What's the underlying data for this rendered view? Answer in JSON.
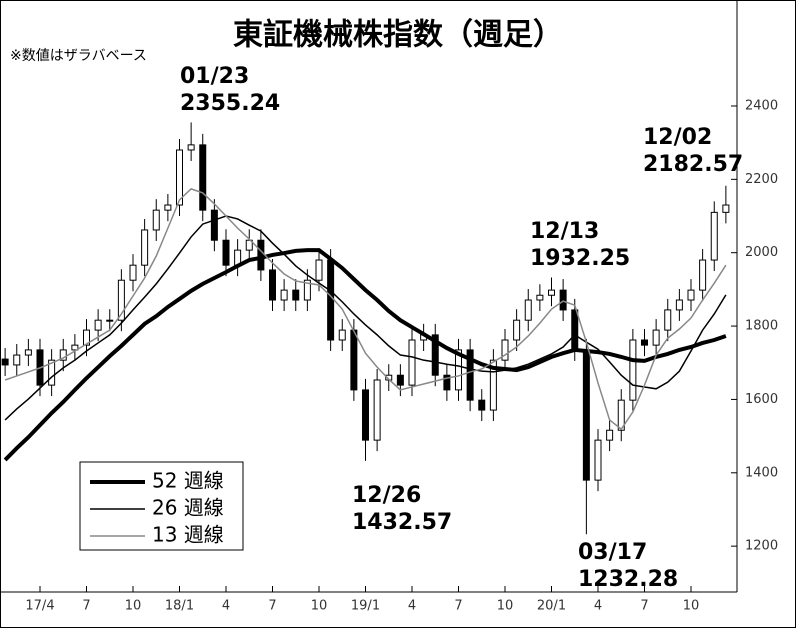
{
  "chart_data": {
    "type": "candlestick",
    "title": "東証機械株指数（週足）",
    "subtitle": "※数値はザラバベース",
    "categories": [
      null,
      null,
      null,
      "17/4",
      null,
      null,
      null,
      "7",
      null,
      null,
      null,
      "10",
      null,
      null,
      null,
      "18/1",
      null,
      null,
      null,
      "4",
      null,
      null,
      null,
      "7",
      null,
      null,
      null,
      "10",
      null,
      null,
      null,
      "19/1",
      null,
      null,
      null,
      "4",
      null,
      null,
      null,
      "7",
      null,
      null,
      null,
      "10",
      null,
      null,
      null,
      "20/1",
      null,
      null,
      null,
      "4",
      null,
      null,
      null,
      "7",
      null,
      null,
      null,
      "10",
      null,
      null,
      null
    ],
    "open": [
      1710,
      1694,
      1721,
      1735,
      1639,
      1707,
      1735,
      1748,
      1789,
      1816,
      1816,
      1925,
      1966,
      2062,
      2116,
      2130,
      2280,
      2294,
      2116,
      2034,
      1966,
      2007,
      2034,
      1953,
      1871,
      1898,
      1871,
      1925,
      1980,
      1762,
      1789,
      1626,
      1489,
      1653,
      1666,
      1639,
      1762,
      1776,
      1666,
      1626,
      1735,
      1598,
      1571,
      1707,
      1762,
      1816,
      1871,
      1884,
      1898,
      1844,
      1735,
      1380,
      1489,
      1516,
      1598,
      1762,
      1748,
      1789,
      1844,
      1871,
      1898,
      1980,
      2110
    ],
    "high": [
      1740,
      1751,
      1765,
      1765,
      1737,
      1765,
      1778,
      1819,
      1846,
      1846,
      1955,
      1996,
      2092,
      2146,
      2160,
      2310,
      2355.24,
      2324,
      2146,
      2064,
      2037,
      2064,
      2064,
      1983,
      1928,
      1928,
      1955,
      2010,
      2010,
      1819,
      1819,
      1656,
      1683,
      1696,
      1696,
      1792,
      1806,
      1806,
      1696,
      1765,
      1765,
      1628,
      1737,
      1792,
      1846,
      1901,
      1914,
      1932.25,
      1928,
      1874,
      1765,
      1519,
      1546,
      1628,
      1792,
      1792,
      1819,
      1874,
      1901,
      1928,
      2010,
      2140,
      2182.57
    ],
    "low": [
      1664,
      1664,
      1691,
      1609,
      1609,
      1677,
      1705,
      1718,
      1759,
      1786,
      1786,
      1895,
      1936,
      2032,
      2086,
      2100,
      2250,
      2086,
      2004,
      1936,
      1936,
      1977,
      1923,
      1841,
      1841,
      1841,
      1841,
      1895,
      1732,
      1732,
      1596,
      1432.57,
      1459,
      1623,
      1609,
      1609,
      1732,
      1636,
      1596,
      1596,
      1568,
      1541,
      1541,
      1677,
      1732,
      1786,
      1841,
      1854,
      1814,
      1705,
      1232.28,
      1350,
      1459,
      1486,
      1568,
      1718,
      1718,
      1759,
      1814,
      1841,
      1868,
      1950,
      2080
    ],
    "close": [
      1694,
      1721,
      1735,
      1639,
      1707,
      1735,
      1748,
      1789,
      1816,
      1816,
      1925,
      1966,
      2062,
      2116,
      2130,
      2280,
      2294,
      2116,
      2034,
      1966,
      2007,
      2034,
      1953,
      1871,
      1898,
      1871,
      1925,
      1980,
      1762,
      1789,
      1626,
      1489,
      1653,
      1666,
      1639,
      1762,
      1776,
      1666,
      1626,
      1735,
      1598,
      1571,
      1707,
      1762,
      1816,
      1871,
      1884,
      1898,
      1844,
      1735,
      1380,
      1489,
      1516,
      1598,
      1762,
      1748,
      1789,
      1844,
      1871,
      1898,
      1980,
      2110,
      2130
    ],
    "series": [
      {
        "name": "52 週線",
        "color": "#000000",
        "width": 4,
        "values": [
          1435,
          1467,
          1497,
          1530,
          1563,
          1593,
          1626,
          1658,
          1688,
          1718,
          1746,
          1776,
          1806,
          1827,
          1852,
          1874,
          1896,
          1915,
          1931,
          1947,
          1964,
          1980,
          1986,
          1994,
          1999,
          2005,
          2007,
          2007,
          1983,
          1958,
          1928,
          1898,
          1871,
          1841,
          1816,
          1797,
          1778,
          1759,
          1740,
          1724,
          1710,
          1696,
          1686,
          1683,
          1680,
          1688,
          1702,
          1716,
          1726,
          1735,
          1732,
          1729,
          1724,
          1716,
          1707,
          1705,
          1716,
          1724,
          1735,
          1743,
          1754,
          1762,
          1773
        ]
      },
      {
        "name": "26 週線",
        "color": "#000000",
        "width": 1.5,
        "values": [
          1544,
          1574,
          1601,
          1631,
          1661,
          1686,
          1707,
          1732,
          1754,
          1776,
          1808,
          1844,
          1879,
          1915,
          1956,
          1999,
          2043,
          2078,
          2089,
          2100,
          2092,
          2075,
          2059,
          2026,
          1996,
          1964,
          1939,
          1917,
          1896,
          1866,
          1833,
          1803,
          1776,
          1746,
          1721,
          1716,
          1707,
          1702,
          1696,
          1691,
          1683,
          1677,
          1675,
          1680,
          1686,
          1696,
          1710,
          1724,
          1743,
          1776,
          1756,
          1737,
          1702,
          1666,
          1639,
          1634,
          1629,
          1647,
          1677,
          1732,
          1789,
          1833,
          1885
        ]
      },
      {
        "name": "13 週線",
        "color": "#888888",
        "width": 1.5,
        "values": [
          1653,
          1664,
          1675,
          1686,
          1699,
          1713,
          1732,
          1751,
          1770,
          1789,
          1833,
          1882,
          1931,
          1991,
          2067,
          2144,
          2174,
          2163,
          2133,
          2100,
          2067,
          2037,
          2005,
          1972,
          1942,
          1923,
          1917,
          1912,
          1882,
          1846,
          1786,
          1726,
          1688,
          1655,
          1626,
          1634,
          1642,
          1650,
          1658,
          1664,
          1675,
          1683,
          1702,
          1721,
          1743,
          1773,
          1808,
          1846,
          1868,
          1857,
          1756,
          1645,
          1544,
          1519,
          1566,
          1639,
          1721,
          1767,
          1792,
          1822,
          1871,
          1917,
          1966
        ]
      }
    ],
    "annotations": [
      {
        "date": "01/23",
        "value": 2355.24
      },
      {
        "date": "12/26",
        "value": 1432.57
      },
      {
        "date": "12/13",
        "value": 1932.25
      },
      {
        "date": "03/17",
        "value": 1232.28
      },
      {
        "date": "12/02",
        "value": 2182.57
      }
    ],
    "ylim": [
      1075,
      2500
    ],
    "yticks": [
      1200,
      1400,
      1600,
      1800,
      2000,
      2200,
      2400
    ],
    "grid": false
  }
}
